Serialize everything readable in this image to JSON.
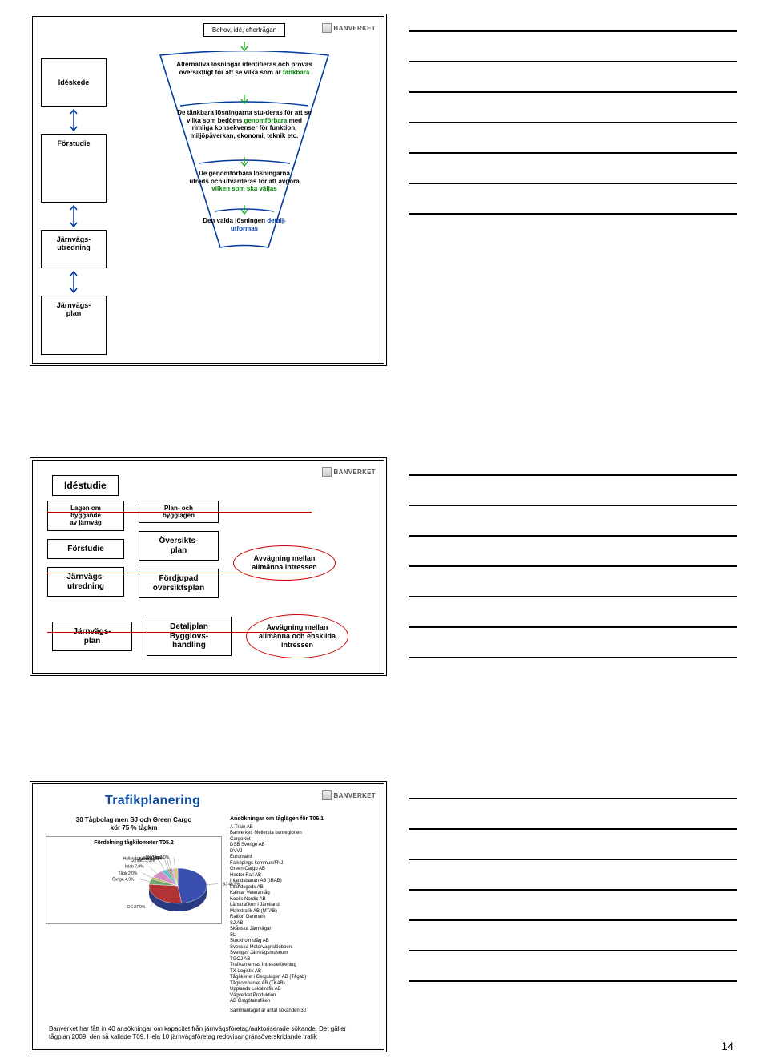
{
  "page_number": "14",
  "logo_text": "BANVERKET",
  "colors": {
    "funnel_stroke": "#003a9e",
    "funnel_fill": "#ffffff",
    "arrow_green": "#00a000",
    "red_line": "#c00000",
    "title_blue": "#0b4aa2",
    "text_green": "#008000",
    "text_blue": "#003a9e"
  },
  "slide1": {
    "top_box": "Behov, idé, efterfrågan",
    "phases": [
      "Idéskede",
      "Förstudie",
      "Järnvägs-\nutredning",
      "Järnvägs-\nplan"
    ],
    "f1": {
      "pre": "Alternativa lösningar identifieras och prövas översiktligt för att se vilka som är ",
      "hl": "tänkbara"
    },
    "f2": {
      "pre": "De tänkbara lösningarna stu-deras för att se vilka som bedöms ",
      "hl": "genomförbara",
      "post": " med rimliga konsekvenser för funktion, miljöpåverkan, ekonomi, teknik etc."
    },
    "f3": {
      "pre": "De genomförbara lösningarna utreds och utvärderas för att avgöra ",
      "hl": "vilken som ska väljas"
    },
    "f4": {
      "pre": "Den valda lösningen ",
      "hl": "detalj-utformas"
    }
  },
  "slide2": {
    "top": "Idéstudie",
    "col1": {
      "a": "Lagen om\nbyggande\nav järnväg",
      "b": "Förstudie",
      "c": "Järnvägs-\nutredning"
    },
    "col2": {
      "a": "Plan- och\nbygglagen",
      "b": "Översikts-\nplan",
      "c": "Fördjupad\növersiktsplan"
    },
    "oval1": "Avvägning mellan\nallmänna intressen",
    "row2": {
      "a": "Järnvägs-\nplan",
      "b": "Detaljplan\nBygglovs-\nhandling"
    },
    "oval2": "Avvägning mellan\nallmänna och enskilda\nintressen"
  },
  "slide3": {
    "title": "Trafikplanering",
    "sub_left": "30 Tågbolag men SJ och Green Cargo\nkör 75 % tågkm",
    "chart": {
      "title": "Fördelning tågkilometer T05.2",
      "slices": [
        {
          "label": "SJ 46,9%",
          "value": 46.9,
          "color": "#3a4fb0"
        },
        {
          "label": "GC 27,9%",
          "value": 27.9,
          "color": "#b23333"
        },
        {
          "label": "Övriga 4,9%",
          "value": 4.9,
          "color": "#6fa870"
        },
        {
          "label": "Tågk 2,0%",
          "value": 2.0,
          "color": "#b9b050"
        },
        {
          "label": "Inlab 7,0%",
          "value": 7.0,
          "color": "#d48fc5"
        },
        {
          "label": "Connex 3,3%",
          "value": 3.3,
          "color": "#60c2c8"
        },
        {
          "label": "Arriva 1,0%",
          "value": 1.0,
          "color": "#c97f3a"
        },
        {
          "label": "Hallandstrafiken 1,0%",
          "value": 1.0,
          "color": "#888888"
        },
        {
          "label": "SF 0,9%",
          "value": 0.9,
          "color": "#a0a0ff"
        },
        {
          "label": "BK Tåg 3,0%",
          "value": 3.0,
          "color": "#e0c080"
        }
      ]
    },
    "right_title": "Ansökningar om tåglägen för T06.1",
    "companies": [
      "A-Train AB",
      "Banverket, Mellersta banregionen",
      "CargoNet",
      "DSB Sverige AB",
      "DVVJ",
      "Euromaint",
      "Falköpings kommun/FNJ",
      "Green Cargo AB",
      "Hector Rail AB",
      "Inlandsbanan AB (IBAB)",
      "Inlandsgods AB",
      "Kalmar Veterantåg",
      "Keolis Nordic AB",
      "Länstrafiken i Jämtland",
      "Malmtrafik AB (MTAB)",
      "Railion Danmark",
      "SJ AB",
      "Skånska Järnvägar",
      "SL",
      "Stockholmståg AB",
      "Svenska Motorvagnsklubben",
      "Sveriges Järnvägsmuseum",
      "TGOJ AB",
      "Trafikanternas Intresseförening",
      "TX Logistik AB",
      "Tågåkeriet i Bergslagen AB (Tågab)",
      "Tågkompaniet AB (TKAB)",
      "Upplands Lokaltrafik AB",
      "Vägverket Produktion",
      "AB Östgötatrafiken"
    ],
    "right_footer": "Sammantaget är antal sökanden 30",
    "footer": "Banverket har fått in 40 ansökningar om kapacitet från järnvägsföretag/auktoriserade sökande. Det gäller tågplan 2009, den så kallade T09. Hela 10 järnvägsföretag redovisar gränsöverskridande trafik"
  }
}
